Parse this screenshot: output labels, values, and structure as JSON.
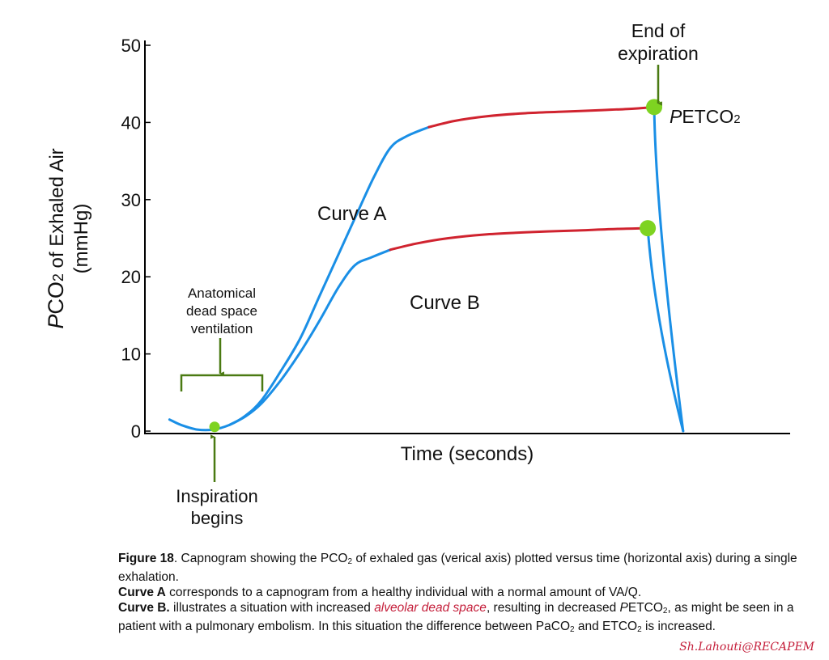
{
  "chart_data": {
    "type": "line",
    "xlabel": "Time (seconds)",
    "ylabel": {
      "prefix": "P",
      "base": "CO",
      "sub": "2",
      "suffix": " of Exhaled Air",
      "units": "(mmHg)"
    },
    "yticks": [
      "0",
      "10",
      "20",
      "30",
      "40",
      "50"
    ],
    "ylim": [
      0,
      50
    ],
    "xlim": [
      0,
      10
    ],
    "grid": false,
    "series": [
      {
        "name": "Curve A",
        "color": "#d0232f",
        "base_color": "#1a8fe6",
        "x": [
          0.37,
          0.55,
          0.8,
          1.05,
          1.3,
          1.55,
          1.8,
          2.1,
          2.4,
          2.7,
          3.0,
          3.3,
          3.55,
          3.8,
          4.05,
          4.4,
          4.8,
          5.3,
          5.9,
          6.5,
          7.1,
          7.6,
          7.9
        ],
        "y": [
          1.5,
          0.8,
          0.2,
          0.2,
          0.8,
          2.0,
          4.0,
          7.8,
          12.0,
          17.5,
          23.0,
          28.5,
          33.0,
          36.7,
          38.2,
          39.4,
          40.2,
          40.8,
          41.2,
          41.4,
          41.6,
          41.8,
          42.0
        ]
      },
      {
        "name": "Curve B",
        "color": "#d0232f",
        "base_color": "#1a8fe6",
        "x": [
          1.3,
          1.55,
          1.8,
          2.1,
          2.4,
          2.7,
          3.0,
          3.25,
          3.5,
          3.8,
          4.2,
          4.7,
          5.3,
          6.0,
          6.7,
          7.3,
          7.8
        ],
        "y": [
          0.8,
          1.9,
          3.6,
          6.6,
          10.2,
          14.3,
          18.7,
          21.5,
          22.5,
          23.5,
          24.3,
          25.0,
          25.5,
          25.8,
          26.0,
          26.2,
          26.3
        ]
      }
    ],
    "annotations": {
      "curve_a_label": "Curve A",
      "curve_b_label": "Curve B",
      "end_of_expiration": [
        "End of",
        "expiration"
      ],
      "petco2": {
        "prefix": "P",
        "base": "ETCO",
        "sub": "2"
      },
      "dead_space": [
        "Anatomical",
        "dead space",
        "ventilation"
      ],
      "inspiration": [
        "Inspiration",
        "begins"
      ]
    },
    "colors": {
      "curve_base": "#1a8fe6",
      "curve_plateau": "#d0232f",
      "marker": "#7ed321",
      "annotation": "#4a7a12",
      "axis": "#000000"
    }
  },
  "caption": {
    "figure_label": "Figure 18",
    "line1_a": ". Capnogram showing the PCO",
    "line1_sub": "2",
    "line1_b": " of exhaled gas (verical axis) plotted versus time (horizontal axis) during a single exhalation.",
    "curve_a_label": "Curve A",
    "curve_a_text": " corresponds to a capnogram from a healthy individual with a normal amount of VA/Q.",
    "curve_b_label": "Curve B.",
    "curve_b_text1": " illustrates a situation with increased ",
    "curve_b_red": "alveolar dead space",
    "curve_b_text2": ", resulting in decreased ",
    "curve_b_p": "P",
    "curve_b_etco": "ETCO",
    "curve_b_sub1": "2",
    "curve_b_text3": ", as might be seen in a patient with a pulmonary embolism. In this situation the difference between PaCO",
    "curve_b_sub2": "2",
    "curve_b_text4": " and ETCO",
    "curve_b_sub3": "2",
    "curve_b_text5": " is increased."
  },
  "signature": "Sh.Lahouti@RECAPEM"
}
